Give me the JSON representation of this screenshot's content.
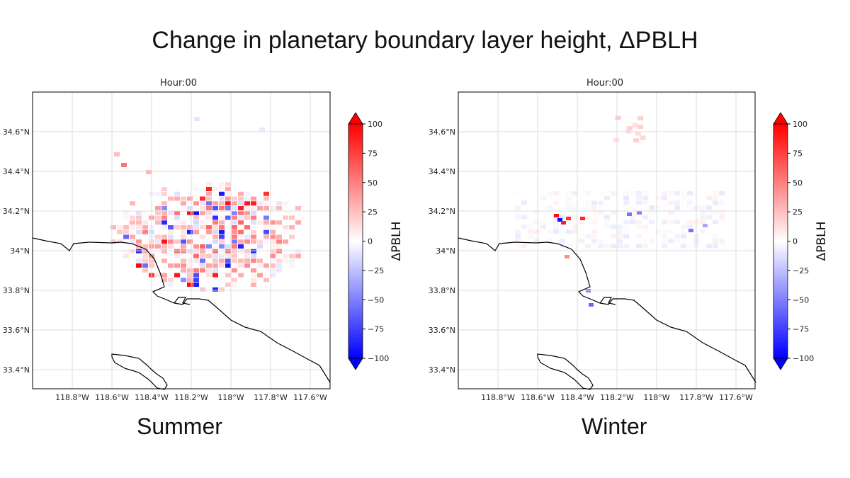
{
  "title": "Change in planetary boundary layer height, ΔPBLH",
  "colorbar": {
    "label": "ΔPBLH",
    "ticks": [
      100,
      75,
      50,
      25,
      0,
      -25,
      -50,
      -75,
      -100
    ],
    "tick_labels": [
      "100",
      "75",
      "50",
      "25",
      "0",
      "−25",
      "−50",
      "−75",
      "−100"
    ],
    "color_max": "#ff0000",
    "color_mid": "#ffffff",
    "color_min": "#0000ff"
  },
  "panels": [
    {
      "id": "summer",
      "subtitle": "Hour:00",
      "season": "Summer",
      "lon_ticks": [
        "118.8°W",
        "118.6°W",
        "118.4°W",
        "118.2°W",
        "118°W",
        "117.8°W",
        "117.6°W"
      ],
      "lat_ticks": [
        "34.6°N",
        "34.4°N",
        "34.2°N",
        "34°N",
        "33.8°N",
        "33.6°N",
        "33.4°N"
      ]
    },
    {
      "id": "winter",
      "subtitle": "Hour:00",
      "season": "Winter",
      "lon_ticks": [
        "118.8°W",
        "118.6°W",
        "118.4°W",
        "118.2°W",
        "118°W",
        "117.8°W",
        "117.6°W"
      ],
      "lat_ticks": [
        "34.6°N",
        "34.4°N",
        "34.2°N",
        "34°N",
        "33.8°N",
        "33.6°N",
        "33.4°N"
      ]
    }
  ]
}
